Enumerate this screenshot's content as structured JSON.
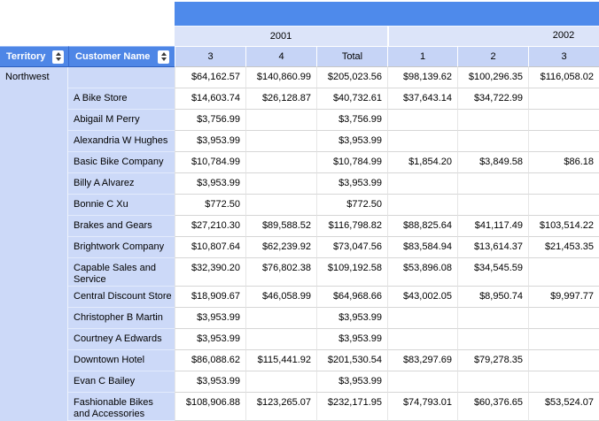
{
  "report": {
    "column_groups": [
      {
        "label": "2001"
      },
      {
        "label": "2002"
      }
    ],
    "column_headers": [
      "3",
      "4",
      "Total",
      "1",
      "2",
      "3"
    ],
    "row_headers": [
      {
        "label": "Territory"
      },
      {
        "label": "Customer Name"
      }
    ],
    "territory_group": "Northwest",
    "rows": [
      {
        "customer": "",
        "values": [
          "$64,162.57",
          "$140,860.99",
          "$205,023.56",
          "$98,139.62",
          "$100,296.35",
          "$116,058.02"
        ]
      },
      {
        "customer": "A Bike Store",
        "values": [
          "$14,603.74",
          "$26,128.87",
          "$40,732.61",
          "$37,643.14",
          "$34,722.99",
          ""
        ]
      },
      {
        "customer": "Abigail M Perry",
        "values": [
          "$3,756.99",
          "",
          "$3,756.99",
          "",
          "",
          ""
        ]
      },
      {
        "customer": "Alexandria W Hughes",
        "values": [
          "$3,953.99",
          "",
          "$3,953.99",
          "",
          "",
          ""
        ]
      },
      {
        "customer": "Basic Bike Company",
        "values": [
          "$10,784.99",
          "",
          "$10,784.99",
          "$1,854.20",
          "$3,849.58",
          "$86.18"
        ]
      },
      {
        "customer": "Billy A Alvarez",
        "values": [
          "$3,953.99",
          "",
          "$3,953.99",
          "",
          "",
          ""
        ]
      },
      {
        "customer": "Bonnie C Xu",
        "values": [
          "$772.50",
          "",
          "$772.50",
          "",
          "",
          ""
        ]
      },
      {
        "customer": "Brakes and Gears",
        "values": [
          "$27,210.30",
          "$89,588.52",
          "$116,798.82",
          "$88,825.64",
          "$41,117.49",
          "$103,514.22"
        ]
      },
      {
        "customer": "Brightwork Company",
        "values": [
          "$10,807.64",
          "$62,239.92",
          "$73,047.56",
          "$83,584.94",
          "$13,614.37",
          "$21,453.35"
        ]
      },
      {
        "customer": "Capable Sales and Service",
        "values": [
          "$32,390.20",
          "$76,802.38",
          "$109,192.58",
          "$53,896.08",
          "$34,545.59",
          ""
        ]
      },
      {
        "customer": "Central Discount Store",
        "values": [
          "$18,909.67",
          "$46,058.99",
          "$64,968.66",
          "$43,002.05",
          "$8,950.74",
          "$9,997.77"
        ]
      },
      {
        "customer": "Christopher B Martin",
        "values": [
          "$3,953.99",
          "",
          "$3,953.99",
          "",
          "",
          ""
        ]
      },
      {
        "customer": "Courtney A Edwards",
        "values": [
          "$3,953.99",
          "",
          "$3,953.99",
          "",
          "",
          ""
        ]
      },
      {
        "customer": "Downtown Hotel",
        "values": [
          "$86,088.62",
          "$115,441.92",
          "$201,530.54",
          "$83,297.69",
          "$79,278.35",
          ""
        ]
      },
      {
        "customer": "Evan C Bailey",
        "values": [
          "$3,953.99",
          "",
          "$3,953.99",
          "",
          "",
          ""
        ]
      },
      {
        "customer": "Fashionable Bikes and Accessories",
        "values": [
          "$108,906.88",
          "$123,265.07",
          "$232,171.95",
          "$74,793.01",
          "$60,376.65",
          "$53,524.07"
        ]
      }
    ],
    "colors": {
      "band_blue": "#4e8aeb",
      "header_blue": "#4e86e6",
      "group_band": "#dce4f9",
      "column_band": "#c6d4f6",
      "row_label": "#ccd9f8",
      "grid_line": "#d6d6d6"
    }
  }
}
